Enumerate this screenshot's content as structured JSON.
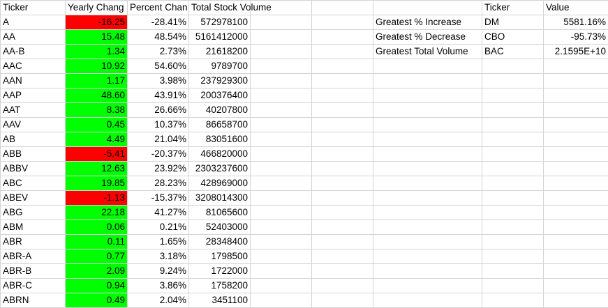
{
  "headers": {
    "ticker": "Ticker",
    "yearly_change": "Yearly Chang",
    "percent_change": "Percent Chan",
    "total_volume": "Total Stock Volume",
    "summary_ticker": "Ticker",
    "summary_value": "Value"
  },
  "colors": {
    "positive": "#00ff00",
    "negative": "#ff0000",
    "gridline": "#d4d4d4"
  },
  "rows": [
    {
      "ticker": "A",
      "yearly_change": "-16.25",
      "sign": "neg",
      "percent_change": "-28.41%",
      "total_volume": "572978100"
    },
    {
      "ticker": "AA",
      "yearly_change": "15.48",
      "sign": "pos",
      "percent_change": "48.54%",
      "total_volume": "5161412000"
    },
    {
      "ticker": "AA-B",
      "yearly_change": "1.34",
      "sign": "pos",
      "percent_change": "2.73%",
      "total_volume": "21618200"
    },
    {
      "ticker": "AAC",
      "yearly_change": "10.92",
      "sign": "pos",
      "percent_change": "54.60%",
      "total_volume": "9789700"
    },
    {
      "ticker": "AAN",
      "yearly_change": "1.17",
      "sign": "pos",
      "percent_change": "3.98%",
      "total_volume": "237929300"
    },
    {
      "ticker": "AAP",
      "yearly_change": "48.60",
      "sign": "pos",
      "percent_change": "43.91%",
      "total_volume": "200376400"
    },
    {
      "ticker": "AAT",
      "yearly_change": "8.38",
      "sign": "pos",
      "percent_change": "26.66%",
      "total_volume": "40207800"
    },
    {
      "ticker": "AAV",
      "yearly_change": "0.45",
      "sign": "pos",
      "percent_change": "10.37%",
      "total_volume": "86658700"
    },
    {
      "ticker": "AB",
      "yearly_change": "4.49",
      "sign": "pos",
      "percent_change": "21.04%",
      "total_volume": "83051600"
    },
    {
      "ticker": "ABB",
      "yearly_change": "-5.41",
      "sign": "neg",
      "percent_change": "-20.37%",
      "total_volume": "466820000"
    },
    {
      "ticker": "ABBV",
      "yearly_change": "12.63",
      "sign": "pos",
      "percent_change": "23.92%",
      "total_volume": "2303237600"
    },
    {
      "ticker": "ABC",
      "yearly_change": "19.85",
      "sign": "pos",
      "percent_change": "28.23%",
      "total_volume": "428969000"
    },
    {
      "ticker": "ABEV",
      "yearly_change": "-1.13",
      "sign": "neg",
      "percent_change": "-15.37%",
      "total_volume": "3208014300"
    },
    {
      "ticker": "ABG",
      "yearly_change": "22.18",
      "sign": "pos",
      "percent_change": "41.27%",
      "total_volume": "81065600"
    },
    {
      "ticker": "ABM",
      "yearly_change": "0.06",
      "sign": "pos",
      "percent_change": "0.21%",
      "total_volume": "52403000"
    },
    {
      "ticker": "ABR",
      "yearly_change": "0.11",
      "sign": "pos",
      "percent_change": "1.65%",
      "total_volume": "28348400"
    },
    {
      "ticker": "ABR-A",
      "yearly_change": "0.77",
      "sign": "pos",
      "percent_change": "3.18%",
      "total_volume": "1798500"
    },
    {
      "ticker": "ABR-B",
      "yearly_change": "2.09",
      "sign": "pos",
      "percent_change": "9.24%",
      "total_volume": "1722000"
    },
    {
      "ticker": "ABR-C",
      "yearly_change": "0.94",
      "sign": "pos",
      "percent_change": "3.86%",
      "total_volume": "1758200"
    },
    {
      "ticker": "ABRN",
      "yearly_change": "0.49",
      "sign": "pos",
      "percent_change": "2.04%",
      "total_volume": "3451100"
    }
  ],
  "summary": [
    {
      "label": "Greatest % Increase",
      "ticker": "DM",
      "value": "5581.16%"
    },
    {
      "label": "Greatest % Decrease",
      "ticker": "CBO",
      "value": "-95.73%"
    },
    {
      "label": "Greatest Total Volume",
      "ticker": "BAC",
      "value": "2.1595E+10"
    }
  ]
}
